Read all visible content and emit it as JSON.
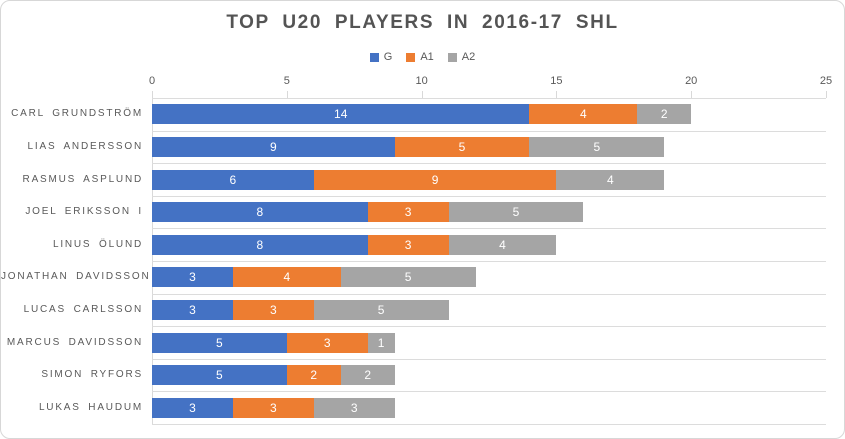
{
  "chart_data": {
    "type": "bar",
    "orientation": "horizontal",
    "stacked": true,
    "title": "TOP U20 PLAYERS IN 2016-17 SHL",
    "legend_position": "top",
    "data_labels": true,
    "categories": [
      "CARL GRUNDSTRÖM",
      "LIAS ANDERSSON",
      "RASMUS ASPLUND",
      "JOEL ERIKSSON I",
      "LINUS ÖLUND",
      "JONATHAN DAVIDSSON",
      "LUCAS CARLSSON",
      "MARCUS DAVIDSSON",
      "SIMON RYFORS",
      "LUKAS HAUDUM"
    ],
    "series": [
      {
        "name": "G",
        "color": "#4472C4",
        "values": [
          14,
          9,
          6,
          8,
          8,
          3,
          3,
          5,
          5,
          3
        ]
      },
      {
        "name": "A1",
        "color": "#ED7D31",
        "values": [
          4,
          5,
          9,
          3,
          3,
          4,
          3,
          3,
          2,
          3
        ]
      },
      {
        "name": "A2",
        "color": "#A5A5A5",
        "values": [
          2,
          5,
          4,
          5,
          4,
          5,
          5,
          1,
          2,
          3
        ]
      }
    ],
    "x_axis": {
      "position": "top",
      "min": 0,
      "max": 25,
      "ticks": [
        0,
        5,
        10,
        15,
        20,
        25
      ]
    }
  },
  "colors": {
    "axis_text": "#595959",
    "grid_line": "#d9d9d9",
    "title_text": "#545454",
    "data_label_text": "#ffffff",
    "frame_border": "#d7d7d7"
  }
}
